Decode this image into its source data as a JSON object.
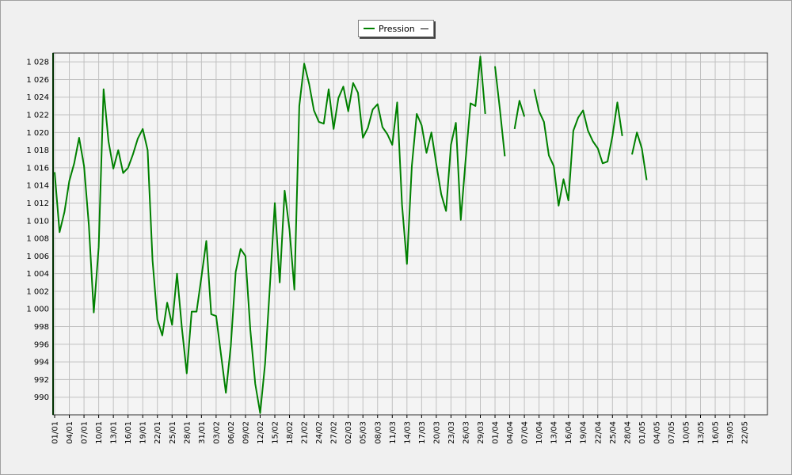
{
  "chart_data": {
    "type": "line",
    "title": "",
    "xlabel": "",
    "ylabel": "",
    "legend": "top-center",
    "grid": true,
    "ylim": [
      988,
      1029
    ],
    "yticks": [
      990,
      992,
      994,
      996,
      998,
      1000,
      1002,
      1004,
      1006,
      1008,
      1010,
      1012,
      1014,
      1016,
      1018,
      1020,
      1022,
      1024,
      1026,
      1028
    ],
    "ytick_labels": [
      "990",
      "992",
      "994",
      "996",
      "998",
      "1 000",
      "1 002",
      "1 004",
      "1 006",
      "1 008",
      "1 010",
      "1 012",
      "1 014",
      "1 016",
      "1 018",
      "1 020",
      "1 022",
      "1 024",
      "1 026",
      "1 028"
    ],
    "x_day_count": 146,
    "xtick_labels": [
      "01/01",
      "04/01",
      "07/01",
      "10/01",
      "13/01",
      "16/01",
      "19/01",
      "22/01",
      "25/01",
      "28/01",
      "31/01",
      "03/02",
      "06/02",
      "09/02",
      "12/02",
      "15/02",
      "18/02",
      "21/02",
      "24/02",
      "27/02",
      "02/03",
      "05/03",
      "08/03",
      "11/03",
      "14/03",
      "17/03",
      "20/03",
      "23/03",
      "26/03",
      "29/03",
      "01/04",
      "04/04",
      "07/04",
      "10/04",
      "13/04",
      "16/04",
      "19/04",
      "22/04",
      "25/04",
      "28/04",
      "01/05",
      "04/05",
      "07/05",
      "10/05",
      "13/05",
      "16/05",
      "19/05",
      "22/05"
    ],
    "series": [
      {
        "name": "Pression",
        "color": "#008000",
        "values": [
          1015.5,
          1008.7,
          1011.0,
          1014.5,
          1016.5,
          1019.4,
          1016.2,
          1009.5,
          999.6,
          1007.0,
          1024.9,
          1019.0,
          1015.9,
          1018.0,
          1015.4,
          1016.0,
          1017.5,
          1019.3,
          1020.4,
          1018.0,
          1005.5,
          998.8,
          997.0,
          1000.7,
          998.2,
          1004.0,
          997.9,
          992.7,
          999.7,
          999.7,
          1003.6,
          1007.7,
          999.4,
          999.2,
          994.8,
          990.5,
          995.8,
          1004.2,
          1006.8,
          1006.0,
          997.6,
          991.5,
          988.2,
          993.8,
          1002.6,
          1012.0,
          1003.0,
          1013.4,
          1009.0,
          1002.2,
          1023.0,
          1027.8,
          1025.5,
          1022.5,
          1021.2,
          1021.0,
          1024.9,
          1020.4,
          1023.9,
          1025.2,
          1022.4,
          1025.6,
          1024.5,
          1019.4,
          1020.5,
          1022.6,
          1023.2,
          1020.6,
          1019.8,
          1018.6,
          1023.4,
          1011.8,
          1005.1,
          1016.2,
          1022.1,
          1020.8,
          1017.7,
          1020.0,
          1016.4,
          1013.0,
          1011.1,
          1018.6,
          1021.1,
          1010.1,
          1017.0,
          1023.3,
          1023.0,
          1028.6,
          1022.1,
          null,
          1027.5,
          1022.6,
          1017.3,
          null,
          1020.4,
          1023.6,
          1021.8,
          null,
          1024.9,
          1022.4,
          1021.2,
          1017.4,
          1016.2,
          1011.7,
          1014.7,
          1012.3,
          1020.2,
          1021.7,
          1022.5,
          1020.2,
          1019.0,
          1018.2,
          1016.5,
          1016.7,
          1019.6,
          1023.4,
          1019.6,
          null,
          1017.5,
          1020.0,
          1018.2,
          1014.6
        ]
      }
    ]
  }
}
